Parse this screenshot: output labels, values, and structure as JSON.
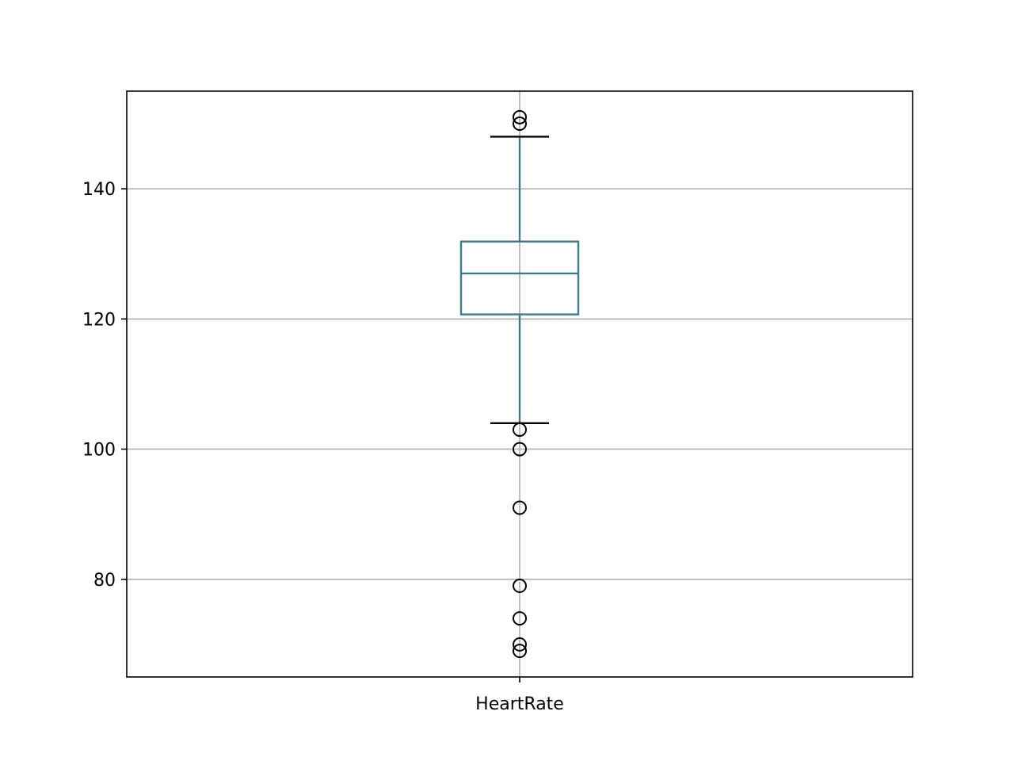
{
  "chart_data": {
    "type": "box",
    "categories": [
      "HeartRate"
    ],
    "title": "",
    "xlabel": "",
    "ylabel": "",
    "ylim": [
      65,
      155
    ],
    "yticks": [
      80,
      100,
      120,
      140
    ],
    "grid": true,
    "box_color": "#3f7a8c",
    "series": [
      {
        "category": "HeartRate",
        "whisker_low": 104,
        "q1": 120.7,
        "median": 127,
        "q3": 131.9,
        "whisker_high": 148,
        "outliers": [
          151,
          150,
          103,
          100,
          91,
          79,
          74,
          70,
          69
        ]
      }
    ]
  }
}
